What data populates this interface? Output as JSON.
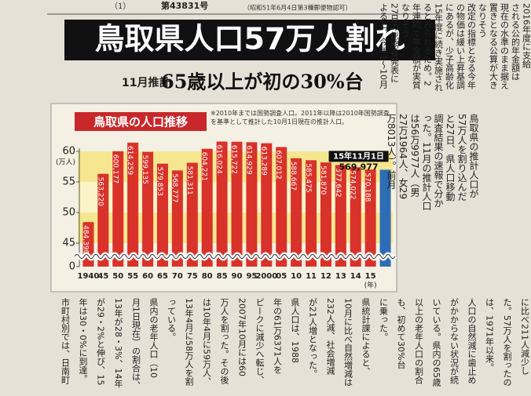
{
  "masthead": {
    "page": "（1）",
    "issue": "第43831号",
    "permit": "（昭和51年6月4日第3種郵便物認可）"
  },
  "headline": "鳥取県人口57万人割れ",
  "subhead": {
    "tag": "11月推計",
    "text": "65歳以上が初の30%台"
  },
  "chart_data": {
    "type": "bar",
    "title": "鳥取県の人口推移",
    "note": "※2010年までは国勢調査人口。2011年以降は2010年国勢調査を基準として推計した10月1日現在の推計人口。",
    "annotation": "15年11月1日",
    "y_unit": "(万人)",
    "x_unit": "(年)",
    "categories": [
      "1940",
      "45",
      "50",
      "55",
      "60",
      "65",
      "70",
      "75",
      "80",
      "85",
      "90",
      "95",
      "2000",
      "05",
      "10",
      "11",
      "12",
      "13",
      "14",
      "15",
      null
    ],
    "values": [
      48.439,
      56.322,
      60.0177,
      61.4259,
      59.9135,
      57.9853,
      56.8777,
      58.1311,
      60.4221,
      61.6024,
      61.5722,
      61.4929,
      61.3289,
      60.7012,
      58.8667,
      58.5475,
      58.187,
      57.7642,
      57.4022,
      57.0188,
      56.9977
    ],
    "value_labels": [
      "484,390",
      "563,220",
      "600,177",
      "614,259",
      "599,135",
      "579,853",
      "568,777",
      "581,311",
      "604,221",
      "616,024",
      "615,722",
      "614,929",
      "613,289",
      "607,012",
      "588,667",
      "585,475",
      "581,870",
      "577,642",
      "574,022",
      "570,188",
      "569,977"
    ],
    "colors": [
      "#d8322a",
      "#d8322a",
      "#d8322a",
      "#d8322a",
      "#d8322a",
      "#d8322a",
      "#d8322a",
      "#d8322a",
      "#d8322a",
      "#d8322a",
      "#d8322a",
      "#d8322a",
      "#d8322a",
      "#d8322a",
      "#d8322a",
      "#d8322a",
      "#d8322a",
      "#d8322a",
      "#d8322a",
      "#d8322a",
      "#2d6db5"
    ],
    "ylim": [
      0,
      60
    ],
    "yticks": [
      0,
      45,
      50,
      55,
      60
    ],
    "axis_break": true
  },
  "article_main": {
    "columns": [
      "鳥取県の推計人口が",
      "57万人を割り込んだ",
      "と27日、県人口移動",
      "調査結果の速報で分か",
      "った。11月の推計人口",
      "は56万9977人（男",
      "27万1964人、女29",
      "万8013人）。前月"
    ]
  },
  "article_right": {
    "columns": [
      "2016年度に支給",
      "される公的年金額は",
      "現在の水準のまま据え",
      "置きとなる公算が大き",
      "なりそう",
      "改定の指標となる今年",
      "の物価は緩い上昇基調",
      "にあるが、少子高齢化",
      "15年度に続き実施され",
      "るとみられるため。2",
      "年連続で年金額が実質",
      "なりそう",
      "27日の総務省発表に",
      "よると、今年1〜10月"
    ]
  },
  "article_bottom": {
    "columns": [
      "に比べ211人減少し",
      "た。57万人を割ったの",
      "は、1971年以来。",
      "人口の自然減に歯止め",
      "がかからない状況が続",
      "いている。県内の65歳",
      "以上の老年人口の割合",
      "も、初めて30%台",
      "に乗った。",
      "県統計課によると、",
      "10月に比べ自然増減は",
      "232人減、社会増減",
      "が21人増となった。",
      "県人口は、1988",
      "年の61万6371人を",
      "ピークに減少へ転じ、",
      "2007年10月には60",
      "万人を割った。その後",
      "は10年4月に59万人、",
      "13年4月に58万人を割",
      "っている。",
      "県内の老年人口（10",
      "月1日現在）の割合は、",
      "13年が28・3%、14年",
      "が29・2%と伸び、15",
      "年は30・0%に到達。",
      "市町村別では、日南町"
    ]
  }
}
